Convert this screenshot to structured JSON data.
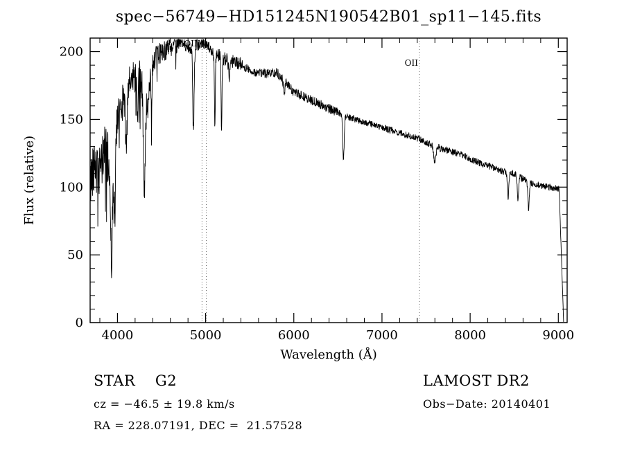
{
  "chart_data": {
    "type": "line",
    "title": "spec−56749−HD151245N190542B01_sp11−145.fits",
    "xlabel": "Wavelength (Å)",
    "ylabel": "Flux (relative)",
    "xlim": [
      3690,
      9100
    ],
    "ylim": [
      0,
      210
    ],
    "x_ticks": [
      4000,
      5000,
      6000,
      7000,
      8000,
      9000
    ],
    "y_ticks": [
      0,
      50,
      100,
      150,
      200
    ],
    "x_minor_step": 200,
    "y_minor_step": 10,
    "grid": false,
    "legend": "none",
    "line_color": "#000000",
    "reference_line_color": "#666666",
    "reference_lines": [
      {
        "x": 4959,
        "label": "OIII",
        "label_dy": 12
      },
      {
        "x": 5007,
        "label": "",
        "label_dy": 12
      },
      {
        "x": 7425,
        "label": "OII",
        "label_dy": 40
      }
    ],
    "series": [
      {
        "name": "spectrum",
        "seed": 42,
        "sample_step": 3,
        "anchors": [
          [
            3690,
            100
          ],
          [
            3720,
            115
          ],
          [
            3750,
            118
          ],
          [
            3780,
            105
          ],
          [
            3810,
            112
          ],
          [
            3850,
            130
          ],
          [
            3880,
            125
          ],
          [
            3910,
            110
          ],
          [
            3935,
            95
          ],
          [
            3960,
            115
          ],
          [
            4000,
            150
          ],
          [
            4050,
            162
          ],
          [
            4100,
            168
          ],
          [
            4150,
            178
          ],
          [
            4200,
            183
          ],
          [
            4250,
            180
          ],
          [
            4310,
            172
          ],
          [
            4350,
            185
          ],
          [
            4400,
            193
          ],
          [
            4450,
            197
          ],
          [
            4500,
            200
          ],
          [
            4550,
            202
          ],
          [
            4600,
            204
          ],
          [
            4650,
            206
          ],
          [
            4700,
            207
          ],
          [
            4750,
            206
          ],
          [
            4800,
            204
          ],
          [
            4870,
            203
          ],
          [
            4950,
            207
          ],
          [
            5000,
            206
          ],
          [
            5050,
            201
          ],
          [
            5100,
            198
          ],
          [
            5150,
            197
          ],
          [
            5200,
            195
          ],
          [
            5300,
            193
          ],
          [
            5400,
            191
          ],
          [
            5500,
            186
          ],
          [
            5600,
            184
          ],
          [
            5700,
            184
          ],
          [
            5800,
            185
          ],
          [
            5900,
            178
          ],
          [
            6000,
            170
          ],
          [
            6100,
            167
          ],
          [
            6200,
            164
          ],
          [
            6300,
            161
          ],
          [
            6400,
            158
          ],
          [
            6500,
            155
          ],
          [
            6600,
            152
          ],
          [
            6700,
            150
          ],
          [
            6800,
            148
          ],
          [
            6900,
            146
          ],
          [
            7000,
            144
          ],
          [
            7100,
            142
          ],
          [
            7200,
            140
          ],
          [
            7300,
            138
          ],
          [
            7400,
            136
          ],
          [
            7500,
            133
          ],
          [
            7600,
            130
          ],
          [
            7700,
            128
          ],
          [
            7800,
            126
          ],
          [
            7900,
            124
          ],
          [
            8000,
            121
          ],
          [
            8100,
            118
          ],
          [
            8200,
            116
          ],
          [
            8300,
            113
          ],
          [
            8400,
            111
          ],
          [
            8500,
            110
          ],
          [
            8600,
            106
          ],
          [
            8700,
            103
          ],
          [
            8800,
            101
          ],
          [
            8900,
            100
          ],
          [
            9000,
            99
          ],
          [
            9060,
            97
          ]
        ],
        "absorption_dips": [
          {
            "x": 3933,
            "depth": 45,
            "sigma": 10
          },
          {
            "x": 3968,
            "depth": 40,
            "sigma": 10
          },
          {
            "x": 4101,
            "depth": 35,
            "sigma": 10
          },
          {
            "x": 4226,
            "depth": 30,
            "sigma": 8
          },
          {
            "x": 4305,
            "depth": 70,
            "sigma": 11
          },
          {
            "x": 4340,
            "depth": 30,
            "sigma": 10
          },
          {
            "x": 4383,
            "depth": 25,
            "sigma": 8
          },
          {
            "x": 4861,
            "depth": 60,
            "sigma": 8
          },
          {
            "x": 5105,
            "depth": 55,
            "sigma": 5
          },
          {
            "x": 5180,
            "depth": 55,
            "sigma": 5
          },
          {
            "x": 5270,
            "depth": 12,
            "sigma": 10
          },
          {
            "x": 5890,
            "depth": 10,
            "sigma": 8
          },
          {
            "x": 6563,
            "depth": 32,
            "sigma": 8
          },
          {
            "x": 7600,
            "depth": 12,
            "sigma": 12
          },
          {
            "x": 8430,
            "depth": 18,
            "sigma": 8
          },
          {
            "x": 8542,
            "depth": 18,
            "sigma": 8
          },
          {
            "x": 8662,
            "depth": 20,
            "sigma": 8
          }
        ],
        "noise_profile": [
          {
            "until": 4000,
            "amp": 20
          },
          {
            "until": 4400,
            "amp": 14
          },
          {
            "until": 4700,
            "amp": 8
          },
          {
            "until": 5400,
            "amp": 5
          },
          {
            "until": 6500,
            "amp": 3.5
          },
          {
            "until": 9200,
            "amp": 2.5
          }
        ],
        "spikes": [
          {
            "until": 4450,
            "prob": 0.05,
            "max": 55
          },
          {
            "until": 5400,
            "prob": 0.02,
            "max": 20
          }
        ],
        "cutoff": {
          "start": 9010,
          "end": 9060
        }
      }
    ]
  },
  "annotations": {
    "class_label": "STAR    G2",
    "survey": "LAMOST DR2",
    "cz": "cz = −46.5 ± 19.8 km/s",
    "obs_date": "Obs−Date: 20140401",
    "coords": "RA = 228.07191, DEC =  21.57528"
  }
}
